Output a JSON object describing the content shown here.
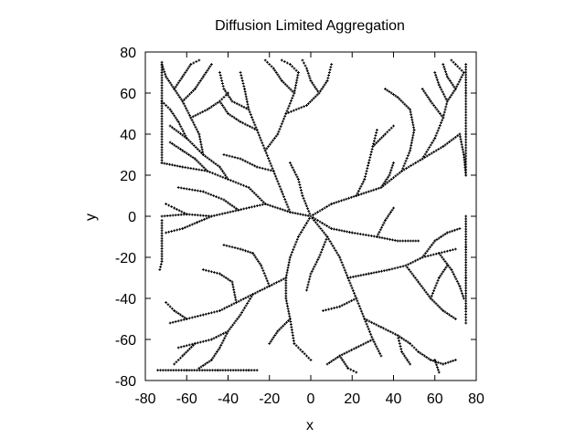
{
  "chart_data": {
    "type": "scatter",
    "title": "Diffusion Limited Aggregation",
    "xlabel": "x",
    "ylabel": "y",
    "xlim": [
      -80,
      80
    ],
    "ylim": [
      -80,
      80
    ],
    "xticks": [
      -80,
      -60,
      -40,
      -20,
      0,
      20,
      40,
      60,
      80
    ],
    "yticks": [
      -80,
      -60,
      -40,
      -20,
      0,
      20,
      40,
      60,
      80
    ],
    "grid": false,
    "legend": "none",
    "marker": "cross",
    "colors": {
      "points": "#000000",
      "axes": "#000000",
      "background": "#ffffff"
    },
    "branches": [
      [
        [
          0,
          0
        ],
        [
          -10,
          2
        ],
        [
          -22,
          6
        ],
        [
          -35,
          3
        ],
        [
          -48,
          0
        ],
        [
          -60,
          1
        ],
        [
          -72,
          0
        ]
      ],
      [
        [
          -35,
          3
        ],
        [
          -42,
          8
        ],
        [
          -52,
          12
        ],
        [
          -64,
          14
        ]
      ],
      [
        [
          -48,
          0
        ],
        [
          -55,
          -3
        ],
        [
          -62,
          -6
        ],
        [
          -70,
          -8
        ]
      ],
      [
        [
          -60,
          1
        ],
        [
          -66,
          4
        ],
        [
          -70,
          6
        ]
      ],
      [
        [
          -22,
          6
        ],
        [
          -30,
          14
        ],
        [
          -40,
          18
        ],
        [
          -50,
          22
        ],
        [
          -62,
          24
        ],
        [
          -72,
          26
        ]
      ],
      [
        [
          -50,
          22
        ],
        [
          -56,
          28
        ],
        [
          -62,
          32
        ],
        [
          -68,
          36
        ]
      ],
      [
        [
          -40,
          18
        ],
        [
          -44,
          24
        ],
        [
          -52,
          30
        ],
        [
          -60,
          38
        ],
        [
          -68,
          44
        ]
      ],
      [
        [
          -60,
          38
        ],
        [
          -64,
          46
        ],
        [
          -68,
          52
        ],
        [
          -72,
          56
        ]
      ],
      [
        [
          -52,
          30
        ],
        [
          -54,
          40
        ],
        [
          -58,
          48
        ],
        [
          -62,
          56
        ],
        [
          -66,
          62
        ],
        [
          -70,
          68
        ],
        [
          -72,
          74
        ]
      ],
      [
        [
          -58,
          48
        ],
        [
          -50,
          52
        ],
        [
          -44,
          56
        ],
        [
          -40,
          60
        ]
      ],
      [
        [
          -62,
          56
        ],
        [
          -56,
          62
        ],
        [
          -52,
          68
        ],
        [
          -48,
          74
        ]
      ],
      [
        [
          -66,
          62
        ],
        [
          -62,
          68
        ],
        [
          -58,
          74
        ],
        [
          -54,
          76
        ]
      ],
      [
        [
          -72,
          -2
        ],
        [
          -72,
          -12
        ],
        [
          -72,
          -22
        ],
        [
          -73,
          -26
        ]
      ],
      [
        [
          -72,
          26
        ],
        [
          -72,
          40
        ],
        [
          -72,
          55
        ],
        [
          -72,
          70
        ],
        [
          -72,
          75
        ]
      ],
      [
        [
          -10,
          2
        ],
        [
          -14,
          12
        ],
        [
          -18,
          22
        ],
        [
          -22,
          32
        ],
        [
          -26,
          42
        ],
        [
          -30,
          52
        ],
        [
          -32,
          62
        ],
        [
          -34,
          70
        ]
      ],
      [
        [
          -22,
          32
        ],
        [
          -16,
          40
        ],
        [
          -12,
          50
        ],
        [
          -8,
          60
        ],
        [
          -6,
          70
        ]
      ],
      [
        [
          -26,
          42
        ],
        [
          -34,
          46
        ],
        [
          -40,
          50
        ],
        [
          -44,
          56
        ]
      ],
      [
        [
          -18,
          22
        ],
        [
          -26,
          24
        ],
        [
          -34,
          28
        ],
        [
          -42,
          30
        ]
      ],
      [
        [
          -30,
          52
        ],
        [
          -38,
          56
        ],
        [
          -42,
          62
        ],
        [
          -44,
          70
        ]
      ],
      [
        [
          -12,
          50
        ],
        [
          -2,
          54
        ],
        [
          4,
          60
        ],
        [
          8,
          66
        ],
        [
          10,
          74
        ]
      ],
      [
        [
          4,
          60
        ],
        [
          0,
          66
        ],
        [
          -2,
          72
        ],
        [
          -4,
          76
        ]
      ],
      [
        [
          -8,
          60
        ],
        [
          -14,
          66
        ],
        [
          -18,
          72
        ],
        [
          -22,
          76
        ]
      ],
      [
        [
          -6,
          70
        ],
        [
          -10,
          74
        ],
        [
          -14,
          76
        ]
      ],
      [
        [
          0,
          0
        ],
        [
          10,
          6
        ],
        [
          22,
          10
        ],
        [
          34,
          14
        ],
        [
          44,
          22
        ],
        [
          54,
          28
        ],
        [
          64,
          34
        ],
        [
          72,
          40
        ]
      ],
      [
        [
          44,
          22
        ],
        [
          48,
          32
        ],
        [
          50,
          42
        ],
        [
          48,
          52
        ]
      ],
      [
        [
          54,
          28
        ],
        [
          60,
          38
        ],
        [
          64,
          48
        ],
        [
          66,
          56
        ],
        [
          70,
          62
        ],
        [
          74,
          70
        ]
      ],
      [
        [
          64,
          48
        ],
        [
          58,
          56
        ],
        [
          54,
          62
        ]
      ],
      [
        [
          66,
          56
        ],
        [
          62,
          64
        ],
        [
          60,
          70
        ]
      ],
      [
        [
          22,
          10
        ],
        [
          26,
          18
        ],
        [
          28,
          26
        ],
        [
          30,
          34
        ],
        [
          32,
          42
        ]
      ],
      [
        [
          34,
          14
        ],
        [
          38,
          20
        ],
        [
          40,
          26
        ]
      ],
      [
        [
          30,
          34
        ],
        [
          36,
          40
        ],
        [
          40,
          44
        ]
      ],
      [
        [
          48,
          52
        ],
        [
          42,
          58
        ],
        [
          36,
          62
        ]
      ],
      [
        [
          70,
          62
        ],
        [
          66,
          68
        ],
        [
          64,
          74
        ]
      ],
      [
        [
          74,
          70
        ],
        [
          70,
          74
        ],
        [
          68,
          76
        ]
      ],
      [
        [
          72,
          40
        ],
        [
          74,
          30
        ],
        [
          75,
          20
        ]
      ],
      [
        [
          75,
          20
        ],
        [
          75,
          40
        ],
        [
          75,
          60
        ],
        [
          75,
          74
        ]
      ],
      [
        [
          0,
          0
        ],
        [
          -6,
          -10
        ],
        [
          -10,
          -20
        ],
        [
          -12,
          -30
        ],
        [
          -12,
          -40
        ],
        [
          -10,
          -50
        ],
        [
          -8,
          -62
        ]
      ],
      [
        [
          -12,
          -30
        ],
        [
          -20,
          -34
        ],
        [
          -28,
          -38
        ],
        [
          -36,
          -42
        ],
        [
          -44,
          -46
        ],
        [
          -52,
          -48
        ],
        [
          -60,
          -50
        ],
        [
          -68,
          -52
        ]
      ],
      [
        [
          -28,
          -38
        ],
        [
          -34,
          -48
        ],
        [
          -40,
          -56
        ],
        [
          -48,
          -60
        ],
        [
          -56,
          -62
        ],
        [
          -64,
          -64
        ]
      ],
      [
        [
          -40,
          -56
        ],
        [
          -44,
          -64
        ],
        [
          -48,
          -70
        ],
        [
          -54,
          -74
        ]
      ],
      [
        [
          -56,
          -62
        ],
        [
          -62,
          -68
        ],
        [
          -66,
          -72
        ]
      ],
      [
        [
          -20,
          -34
        ],
        [
          -24,
          -24
        ],
        [
          -28,
          -18
        ],
        [
          -34,
          -16
        ],
        [
          -42,
          -14
        ]
      ],
      [
        [
          -10,
          -50
        ],
        [
          -16,
          -56
        ],
        [
          -20,
          -62
        ]
      ],
      [
        [
          -8,
          -62
        ],
        [
          -4,
          -66
        ],
        [
          0,
          -70
        ]
      ],
      [
        [
          -60,
          -50
        ],
        [
          -66,
          -46
        ],
        [
          -70,
          -42
        ]
      ],
      [
        [
          -36,
          -42
        ],
        [
          -38,
          -32
        ],
        [
          -44,
          -28
        ],
        [
          -52,
          -26
        ]
      ],
      [
        [
          -74,
          -75
        ],
        [
          -60,
          -75
        ],
        [
          -45,
          -75
        ],
        [
          -30,
          -75
        ],
        [
          -26,
          -75
        ]
      ],
      [
        [
          0,
          0
        ],
        [
          8,
          -10
        ],
        [
          14,
          -20
        ],
        [
          18,
          -30
        ],
        [
          22,
          -40
        ],
        [
          26,
          -50
        ],
        [
          30,
          -60
        ],
        [
          34,
          -68
        ]
      ],
      [
        [
          18,
          -30
        ],
        [
          28,
          -28
        ],
        [
          38,
          -26
        ],
        [
          46,
          -24
        ],
        [
          54,
          -20
        ],
        [
          62,
          -18
        ],
        [
          70,
          -16
        ]
      ],
      [
        [
          46,
          -24
        ],
        [
          52,
          -32
        ],
        [
          58,
          -40
        ],
        [
          64,
          -46
        ],
        [
          70,
          -50
        ]
      ],
      [
        [
          58,
          -40
        ],
        [
          62,
          -30
        ],
        [
          66,
          -24
        ]
      ],
      [
        [
          26,
          -50
        ],
        [
          34,
          -54
        ],
        [
          42,
          -58
        ],
        [
          48,
          -62
        ],
        [
          52,
          -66
        ]
      ],
      [
        [
          42,
          -58
        ],
        [
          44,
          -66
        ],
        [
          48,
          -72
        ]
      ],
      [
        [
          30,
          -60
        ],
        [
          22,
          -64
        ],
        [
          14,
          -68
        ],
        [
          8,
          -72
        ]
      ],
      [
        [
          14,
          -68
        ],
        [
          18,
          -74
        ],
        [
          22,
          -76
        ]
      ],
      [
        [
          54,
          -20
        ],
        [
          60,
          -12
        ],
        [
          66,
          -8
        ],
        [
          72,
          -6
        ]
      ],
      [
        [
          62,
          -18
        ],
        [
          68,
          -26
        ],
        [
          72,
          -34
        ],
        [
          74,
          -40
        ]
      ],
      [
        [
          8,
          -10
        ],
        [
          4,
          -20
        ],
        [
          0,
          -28
        ],
        [
          -2,
          -36
        ]
      ],
      [
        [
          22,
          -40
        ],
        [
          14,
          -44
        ],
        [
          6,
          -46
        ]
      ],
      [
        [
          52,
          -66
        ],
        [
          58,
          -70
        ],
        [
          64,
          -72
        ],
        [
          70,
          -70
        ]
      ],
      [
        [
          60,
          -70
        ],
        [
          62,
          -76
        ]
      ],
      [
        [
          75,
          0
        ],
        [
          75,
          -15
        ],
        [
          75,
          -30
        ],
        [
          75,
          -45
        ],
        [
          75,
          -52
        ]
      ],
      [
        [
          0,
          0
        ],
        [
          10,
          -6
        ],
        [
          20,
          -8
        ],
        [
          32,
          -10
        ],
        [
          42,
          -12
        ],
        [
          52,
          -12
        ]
      ],
      [
        [
          32,
          -10
        ],
        [
          36,
          -2
        ],
        [
          40,
          4
        ]
      ],
      [
        [
          0,
          0
        ],
        [
          -4,
          10
        ],
        [
          -6,
          18
        ],
        [
          -10,
          26
        ]
      ]
    ]
  }
}
